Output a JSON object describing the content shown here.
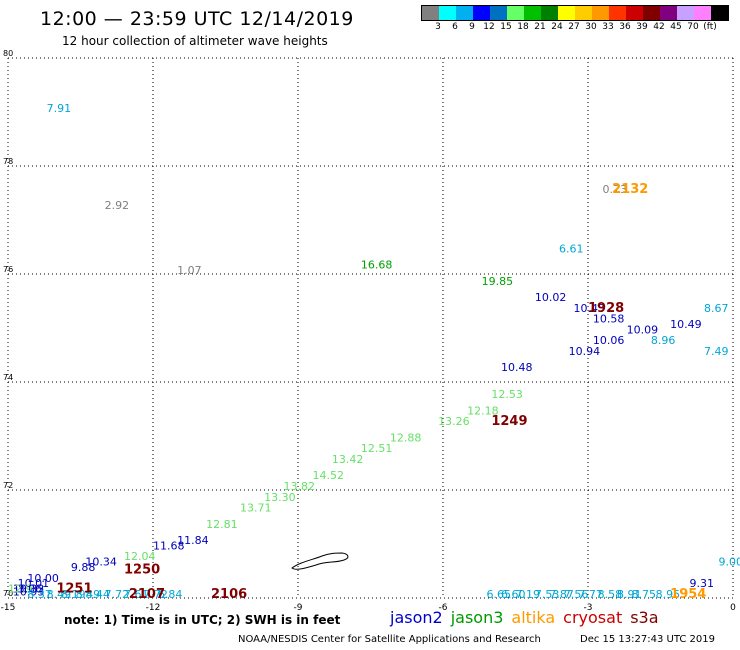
{
  "header": {
    "title": "12:00 — 23:59 UTC 12/14/2019",
    "subtitle": "12 hour collection of altimeter wave heights"
  },
  "legend": {
    "swatches": [
      "#808080",
      "#00ffff",
      "#00b0f0",
      "#0000ff",
      "#0070c0",
      "#66ff66",
      "#00c000",
      "#008000",
      "#ffff00",
      "#ffcc00",
      "#ff9900",
      "#ff3300",
      "#cc0000",
      "#800000",
      "#800080",
      "#c8a0ff",
      "#ff80ff",
      "#000000"
    ],
    "labels": [
      "3",
      "6",
      "9",
      "12",
      "15",
      "18",
      "21",
      "24",
      "27",
      "30",
      "33",
      "36",
      "39",
      "42",
      "45",
      "70",
      "(ft)"
    ]
  },
  "footer": {
    "note": "note:  1) Time is in UTC;  2) SWH is in feet",
    "satellites": [
      {
        "name": "jason2",
        "color": "#0000cc"
      },
      {
        "name": "jason3",
        "color": "#009900"
      },
      {
        "name": "altika",
        "color": "#ff9900"
      },
      {
        "name": "cryosat",
        "color": "#cc0000"
      },
      {
        "name": "s3a",
        "color": "#800000"
      }
    ],
    "credit": "NOAA/NESDIS Center for Satellite Applications and Research",
    "generated": "Dec 15 13:27:43 UTC 2019"
  },
  "colors": {
    "light_green": "#66e066",
    "green": "#00a000",
    "blue": "#0000bb",
    "cyan": "#00a6d6",
    "gray": "#808080",
    "orange": "#ff9900",
    "maroon": "#800000"
  },
  "chart_data": {
    "type": "scatter",
    "xlim": [
      -15,
      0
    ],
    "ylim": [
      70,
      80
    ],
    "xticks": [
      "-15",
      "-12",
      "-9",
      "-6",
      "-3",
      "0"
    ],
    "yticks": [
      "70",
      "72",
      "74",
      "76",
      "78",
      "80"
    ],
    "grid": true,
    "points": [
      {
        "x": -14.2,
        "y": 79.0,
        "label": "7.91",
        "color": "cyan"
      },
      {
        "x": -11.5,
        "y": 76.0,
        "label": "1.07",
        "color": "gray"
      },
      {
        "x": -13.0,
        "y": 77.2,
        "label": "2.92",
        "color": "gray"
      },
      {
        "x": -2.7,
        "y": 77.5,
        "label": "0.73",
        "color": "gray"
      },
      {
        "x": -3.6,
        "y": 76.4,
        "label": "6.61",
        "color": "cyan"
      },
      {
        "x": -7.7,
        "y": 76.1,
        "label": "16.68",
        "color": "green"
      },
      {
        "x": -5.2,
        "y": 75.8,
        "label": "19.85",
        "color": "green"
      },
      {
        "x": -4.1,
        "y": 75.5,
        "label": "10.02",
        "color": "blue"
      },
      {
        "x": -3.3,
        "y": 75.3,
        "label": "10.43",
        "color": "blue"
      },
      {
        "x": -2.9,
        "y": 75.1,
        "label": "10.58",
        "color": "blue"
      },
      {
        "x": -2.2,
        "y": 74.9,
        "label": "10.09",
        "color": "blue"
      },
      {
        "x": -1.3,
        "y": 75.0,
        "label": "10.49",
        "color": "blue"
      },
      {
        "x": -1.7,
        "y": 74.7,
        "label": "8.96",
        "color": "cyan"
      },
      {
        "x": -0.6,
        "y": 75.3,
        "label": "8.67",
        "color": "cyan"
      },
      {
        "x": -0.6,
        "y": 74.5,
        "label": "7.49",
        "color": "cyan"
      },
      {
        "x": -2.9,
        "y": 74.7,
        "label": "10.06",
        "color": "blue"
      },
      {
        "x": -3.4,
        "y": 74.5,
        "label": "10.94",
        "color": "blue"
      },
      {
        "x": -4.8,
        "y": 74.2,
        "label": "10.48",
        "color": "blue"
      },
      {
        "x": -5.0,
        "y": 73.7,
        "label": "12.53",
        "color": "light_green"
      },
      {
        "x": -5.5,
        "y": 73.4,
        "label": "12.18",
        "color": "light_green"
      },
      {
        "x": -6.1,
        "y": 73.2,
        "label": "13.26",
        "color": "light_green"
      },
      {
        "x": -7.1,
        "y": 72.9,
        "label": "12.88",
        "color": "light_green"
      },
      {
        "x": -7.7,
        "y": 72.7,
        "label": "12.51",
        "color": "light_green"
      },
      {
        "x": -8.3,
        "y": 72.5,
        "label": "13.42",
        "color": "light_green"
      },
      {
        "x": -8.7,
        "y": 72.2,
        "label": "14.52",
        "color": "light_green"
      },
      {
        "x": -9.3,
        "y": 72.0,
        "label": "13.82",
        "color": "light_green"
      },
      {
        "x": -9.7,
        "y": 71.8,
        "label": "13.30",
        "color": "light_green"
      },
      {
        "x": -10.2,
        "y": 71.6,
        "label": "13.71",
        "color": "light_green"
      },
      {
        "x": -10.9,
        "y": 71.3,
        "label": "12.81",
        "color": "light_green"
      },
      {
        "x": -11.5,
        "y": 71.0,
        "label": "11.84",
        "color": "blue"
      },
      {
        "x": -12.0,
        "y": 70.9,
        "label": "11.68",
        "color": "blue"
      },
      {
        "x": -12.6,
        "y": 70.7,
        "label": "12.04",
        "color": "light_green"
      },
      {
        "x": -13.4,
        "y": 70.6,
        "label": "10.34",
        "color": "blue"
      },
      {
        "x": -13.7,
        "y": 70.5,
        "label": "9.88",
        "color": "blue"
      },
      {
        "x": -14.6,
        "y": 70.3,
        "label": "10.00",
        "color": "blue"
      },
      {
        "x": -14.8,
        "y": 70.2,
        "label": "10.01",
        "color": "blue"
      },
      {
        "x": -14.9,
        "y": 70.1,
        "label": "10.32",
        "color": "blue"
      },
      {
        "x": -14.9,
        "y": 70.05,
        "label": "10.93",
        "color": "blue"
      },
      {
        "x": -15.0,
        "y": 70.1,
        "label": "12.9",
        "color": "light_green"
      },
      {
        "x": -14.8,
        "y": 70.1,
        "label": "3.06",
        "color": "blue"
      },
      {
        "x": -14.6,
        "y": 70.0,
        "label": "8.37",
        "color": "cyan"
      },
      {
        "x": -14.2,
        "y": 70.0,
        "label": "8.49",
        "color": "cyan"
      },
      {
        "x": -13.9,
        "y": 70.0,
        "label": "8.19",
        "color": "cyan"
      },
      {
        "x": -13.6,
        "y": 70.0,
        "label": "8.49",
        "color": "cyan"
      },
      {
        "x": -13.4,
        "y": 70.0,
        "label": "8.44",
        "color": "cyan"
      },
      {
        "x": -13.0,
        "y": 70.0,
        "label": "7.72",
        "color": "cyan"
      },
      {
        "x": -12.6,
        "y": 70.0,
        "label": "7.61",
        "color": "cyan"
      },
      {
        "x": -12.2,
        "y": 70.0,
        "label": "7.72",
        "color": "cyan"
      },
      {
        "x": -11.9,
        "y": 70.0,
        "label": "6.84",
        "color": "cyan"
      },
      {
        "x": -5.1,
        "y": 70.0,
        "label": "6.65",
        "color": "cyan"
      },
      {
        "x": -4.8,
        "y": 70.0,
        "label": "6.60",
        "color": "cyan"
      },
      {
        "x": -4.5,
        "y": 70.0,
        "label": "7.19",
        "color": "cyan"
      },
      {
        "x": -4.1,
        "y": 70.0,
        "label": "7.53",
        "color": "cyan"
      },
      {
        "x": -3.8,
        "y": 70.0,
        "label": "7.87",
        "color": "cyan"
      },
      {
        "x": -3.5,
        "y": 70.0,
        "label": "7.56",
        "color": "cyan"
      },
      {
        "x": -3.2,
        "y": 70.0,
        "label": "7.77",
        "color": "cyan"
      },
      {
        "x": -2.8,
        "y": 70.0,
        "label": "8.58",
        "color": "cyan"
      },
      {
        "x": -2.4,
        "y": 70.0,
        "label": "8.91",
        "color": "cyan"
      },
      {
        "x": -2.1,
        "y": 70.0,
        "label": "8.75",
        "color": "cyan"
      },
      {
        "x": -1.6,
        "y": 70.0,
        "label": "8.95",
        "color": "cyan"
      },
      {
        "x": -0.9,
        "y": 70.2,
        "label": "9.31",
        "color": "blue"
      },
      {
        "x": -0.3,
        "y": 70.6,
        "label": "9.00",
        "color": "cyan"
      }
    ],
    "time_labels": [
      {
        "x": -2.5,
        "y": 77.5,
        "label": "2132",
        "color": "orange"
      },
      {
        "x": -3.0,
        "y": 75.3,
        "label": "1928",
        "color": "maroon"
      },
      {
        "x": -5.0,
        "y": 73.2,
        "label": "1249",
        "color": "maroon"
      },
      {
        "x": -12.6,
        "y": 70.45,
        "label": "1250",
        "color": "maroon"
      },
      {
        "x": -14.0,
        "y": 70.1,
        "label": "1251",
        "color": "maroon"
      },
      {
        "x": -12.5,
        "y": 70.0,
        "label": "2107",
        "color": "maroon"
      },
      {
        "x": -10.8,
        "y": 70.0,
        "label": "2106",
        "color": "maroon"
      },
      {
        "x": -1.3,
        "y": 70.0,
        "label": "1954",
        "color": "orange"
      }
    ]
  }
}
